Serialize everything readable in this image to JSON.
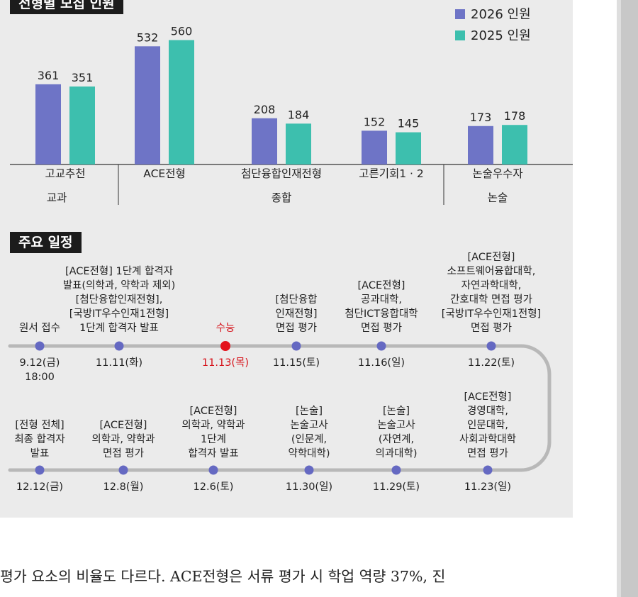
{
  "chart_data": {
    "type": "bar",
    "title": "전형별 모집 인원",
    "categories": [
      "고교추천",
      "ACE전형",
      "첨단융합인재전형",
      "고른기회1 · 2",
      "논술우수자"
    ],
    "groups": [
      {
        "label": "교과",
        "categories": [
          "고교추천"
        ]
      },
      {
        "label": "종합",
        "categories": [
          "ACE전형",
          "첨단융합인재전형",
          "고른기회1 · 2"
        ]
      },
      {
        "label": "논술",
        "categories": [
          "논술우수자"
        ]
      }
    ],
    "series": [
      {
        "name": "2026 인원",
        "color": "#6e74c6",
        "values": [
          361,
          532,
          208,
          152,
          173
        ]
      },
      {
        "name": "2025 인원",
        "color": "#3dbfae",
        "values": [
          351,
          560,
          184,
          145,
          178
        ]
      }
    ],
    "ylim": [
      0,
      600
    ],
    "grid": false,
    "legend": "top-right"
  },
  "schedule": {
    "title": "주요 일정",
    "top_row": [
      {
        "label": [
          "원서 접수"
        ],
        "date": [
          "9.12(금)",
          "18:00"
        ],
        "highlight": false
      },
      {
        "label": [
          "[ACE전형] 1단계 합격자",
          "발표(의학과, 약학과 제외)",
          "[첨단융합인재전형],",
          "[국방IT우수인재1전형]",
          "1단계 합격자 발표"
        ],
        "date": [
          "11.11(화)"
        ],
        "highlight": false
      },
      {
        "label": [
          "수능"
        ],
        "date": [
          "11.13(목)"
        ],
        "highlight": true
      },
      {
        "label": [
          "[첨단융합",
          "인재전형]",
          "면접 평가"
        ],
        "date": [
          "11.15(토)"
        ],
        "highlight": false
      },
      {
        "label": [
          "[ACE전형]",
          "공과대학,",
          "첨단ICT융합대학",
          "면접 평가"
        ],
        "date": [
          "11.16(일)"
        ],
        "highlight": false
      },
      {
        "label": [
          "[ACE전형]",
          "소프트웨어융합대학,",
          "자연과학대학,",
          "간호대학 면접 평가",
          "[국방IT우수인재1전형]",
          "면접 평가"
        ],
        "date": [
          "11.22(토)"
        ],
        "highlight": false
      }
    ],
    "bottom_row": [
      {
        "label": [
          "[전형 전체]",
          "최종 합격자",
          "발표"
        ],
        "date": [
          "12.12(금)"
        ]
      },
      {
        "label": [
          "[ACE전형]",
          "의학과, 약학과",
          "면접 평가"
        ],
        "date": [
          "12.8(월)"
        ]
      },
      {
        "label": [
          "[ACE전형]",
          "의학과, 약학과",
          "1단계",
          "합격자 발표"
        ],
        "date": [
          "12.6(토)"
        ]
      },
      {
        "label": [
          "[논술]",
          "논술고사",
          "(인문계,",
          "약학대학)"
        ],
        "date": [
          "11.30(일)"
        ]
      },
      {
        "label": [
          "[논술]",
          "논술고사",
          "(자연계,",
          "의과대학)"
        ],
        "date": [
          "11.29(토)"
        ]
      },
      {
        "label": [
          "[ACE전형]",
          "경영대학,",
          "인문대학,",
          "사회과학대학",
          "면접 평가"
        ],
        "date": [
          "11.23(일)"
        ]
      }
    ]
  },
  "footer_text": "평가 요소의 비율도 다르다. ACE전형은 서류 평가 시 학업 역량 37%, 진"
}
